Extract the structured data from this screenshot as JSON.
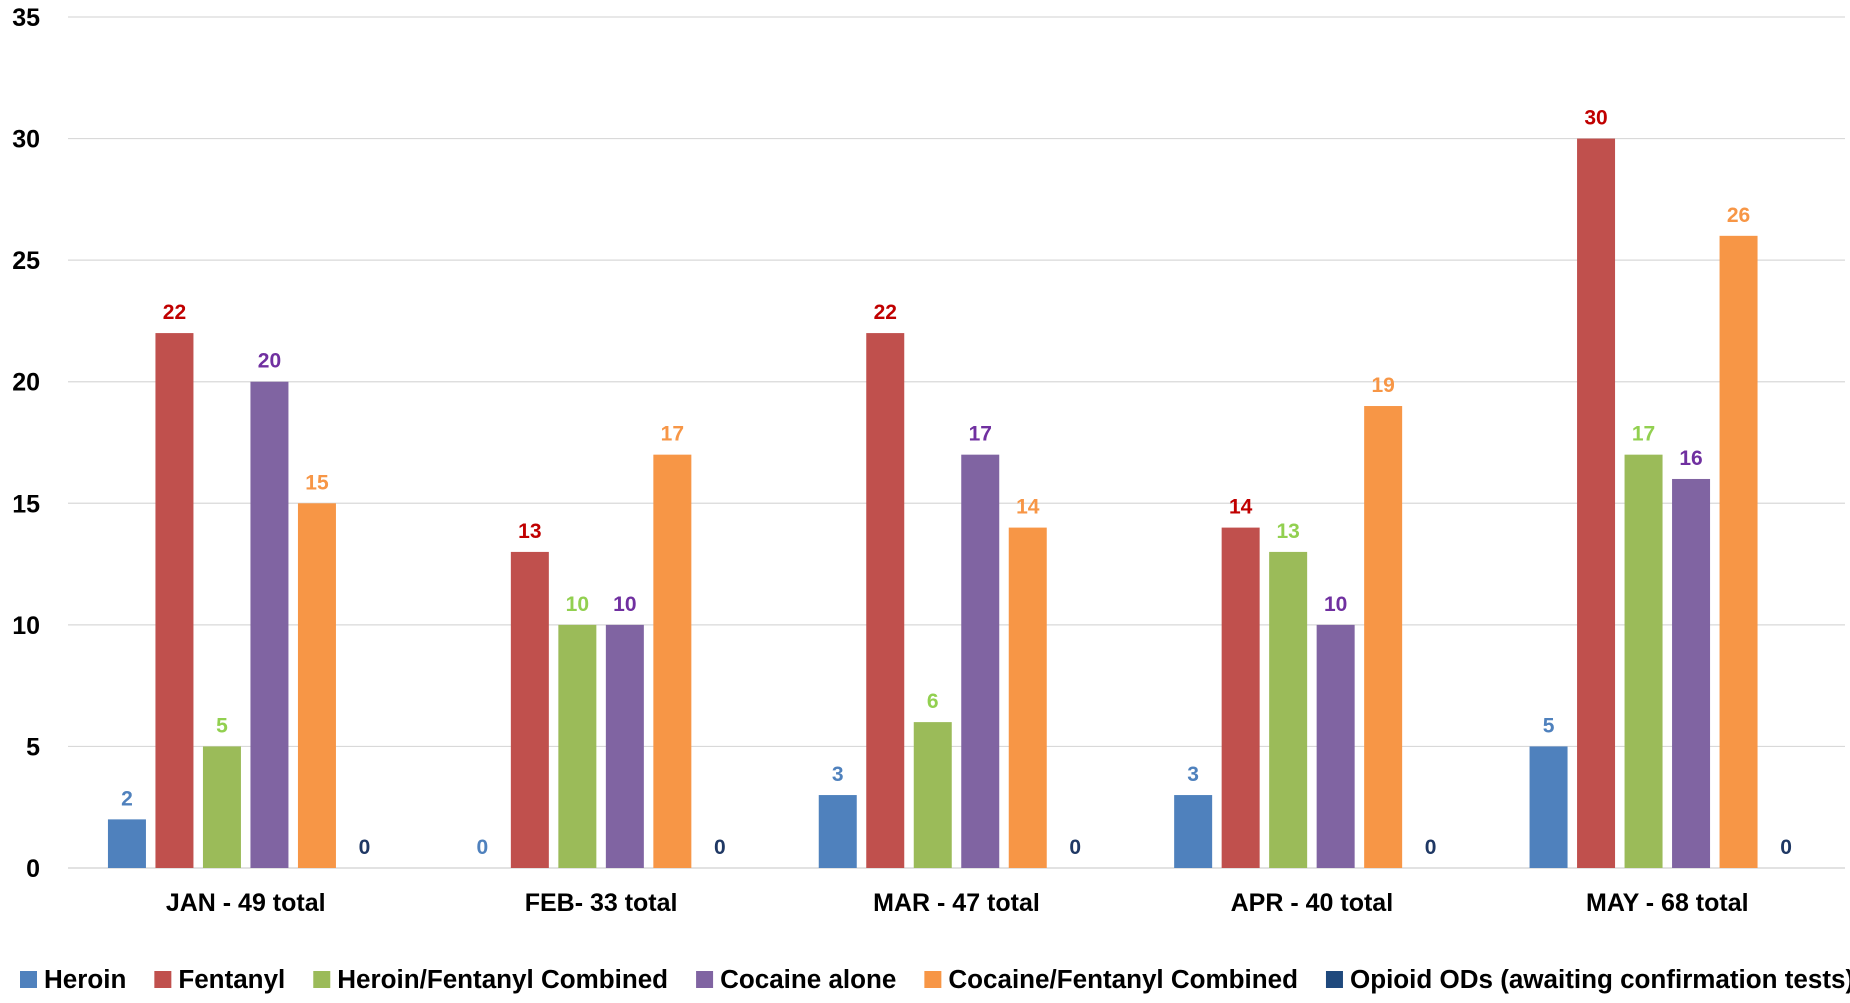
{
  "chart_data": {
    "type": "bar",
    "title": "",
    "xlabel": "",
    "ylabel": "",
    "ylim": [
      0,
      35
    ],
    "yticks": [
      0,
      5,
      10,
      15,
      20,
      25,
      30,
      35
    ],
    "grid": true,
    "legend_position": "bottom",
    "categories": [
      "JAN - 49 total",
      "FEB- 33 total",
      "MAR - 47 total",
      "APR - 40 total",
      "MAY - 68 total"
    ],
    "series": [
      {
        "name": "Heroin",
        "color": "#4F81BD",
        "label_color": "#4F81BD",
        "values": [
          2,
          0,
          3,
          3,
          5
        ]
      },
      {
        "name": "Fentanyl",
        "color": "#C0504D",
        "label_color": "#C00000",
        "values": [
          22,
          13,
          22,
          14,
          30
        ]
      },
      {
        "name": "Heroin/Fentanyl Combined",
        "color": "#9BBB59",
        "label_color": "#92D050",
        "values": [
          5,
          10,
          6,
          13,
          17
        ]
      },
      {
        "name": "Cocaine alone",
        "color": "#8064A2",
        "label_color": "#7030A0",
        "values": [
          20,
          10,
          17,
          10,
          16
        ]
      },
      {
        "name": "Cocaine/Fentanyl Combined",
        "color": "#F79646",
        "label_color": "#F79646",
        "values": [
          15,
          17,
          14,
          19,
          26
        ]
      },
      {
        "name": "Opioid ODs (awaiting confirmation tests)",
        "color": "#1F497D",
        "label_color": "#1F3864",
        "values": [
          0,
          0,
          0,
          0,
          0
        ]
      }
    ]
  }
}
